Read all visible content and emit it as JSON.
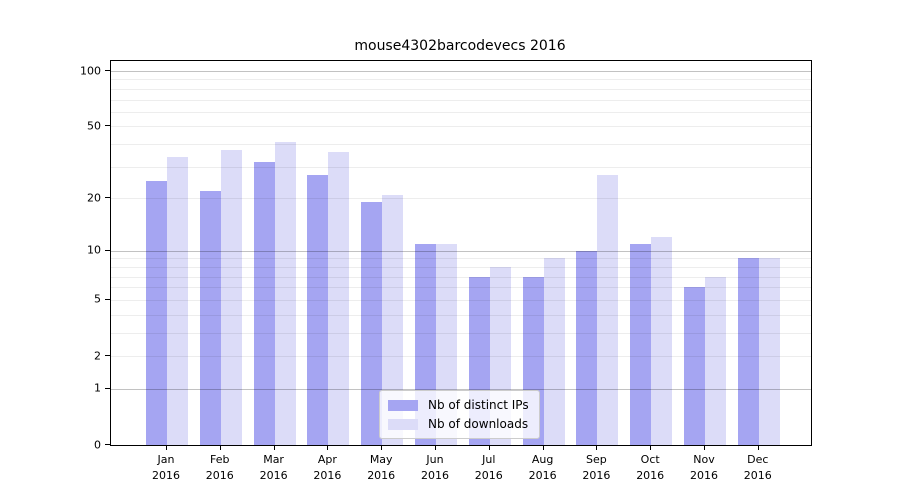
{
  "title": "mouse4302barcodevecs 2016",
  "colors": {
    "ips": "#a5a5f2",
    "downloads": "#dcdcf8",
    "spine": "#000000",
    "grid_minor": "#ededed",
    "grid_major": "#bfbfbf",
    "legend_border": "#cccccc"
  },
  "y_axis": {
    "tick_values": [
      0,
      1,
      2,
      5,
      10,
      20,
      50,
      100
    ],
    "tick_labels": [
      "0",
      "1",
      "2",
      "5",
      "10",
      "20",
      "50",
      "100"
    ],
    "major_grid_values": [
      1,
      10,
      100
    ],
    "minor_grid_values": [
      2,
      3,
      4,
      5,
      6,
      7,
      8,
      9,
      20,
      30,
      40,
      50,
      60,
      70,
      80,
      90
    ]
  },
  "x_axis": {
    "months": [
      {
        "line1": "Jan",
        "line2": "2016"
      },
      {
        "line1": "Feb",
        "line2": "2016"
      },
      {
        "line1": "Mar",
        "line2": "2016"
      },
      {
        "line1": "Apr",
        "line2": "2016"
      },
      {
        "line1": "May",
        "line2": "2016"
      },
      {
        "line1": "Jun",
        "line2": "2016"
      },
      {
        "line1": "Jul",
        "line2": "2016"
      },
      {
        "line1": "Aug",
        "line2": "2016"
      },
      {
        "line1": "Sep",
        "line2": "2016"
      },
      {
        "line1": "Oct",
        "line2": "2016"
      },
      {
        "line1": "Nov",
        "line2": "2016"
      },
      {
        "line1": "Dec",
        "line2": "2016"
      }
    ]
  },
  "legend": {
    "items": [
      {
        "label": "Nb of distinct IPs",
        "color_key": "ips"
      },
      {
        "label": "Nb of downloads",
        "color_key": "downloads"
      }
    ]
  },
  "chart_data": {
    "type": "bar",
    "title": "mouse4302barcodevecs 2016",
    "categories": [
      "Jan 2016",
      "Feb 2016",
      "Mar 2016",
      "Apr 2016",
      "May 2016",
      "Jun 2016",
      "Jul 2016",
      "Aug 2016",
      "Sep 2016",
      "Oct 2016",
      "Nov 2016",
      "Dec 2016"
    ],
    "series": [
      {
        "name": "Nb of distinct IPs",
        "values": [
          25,
          22,
          32,
          27,
          19,
          11,
          7,
          7,
          10,
          11,
          6,
          9
        ]
      },
      {
        "name": "Nb of downloads",
        "values": [
          34,
          37,
          41,
          36,
          21,
          11,
          8,
          9,
          27,
          12,
          7,
          9
        ]
      }
    ],
    "xlabel": "",
    "ylabel": "",
    "yscale": "log(1+y)",
    "yticks": [
      0,
      1,
      2,
      5,
      10,
      20,
      50,
      100
    ],
    "ylim": [
      0,
      116
    ],
    "grid": "horizontal, drawn over bars",
    "legend_position": "lower center inside plot"
  }
}
